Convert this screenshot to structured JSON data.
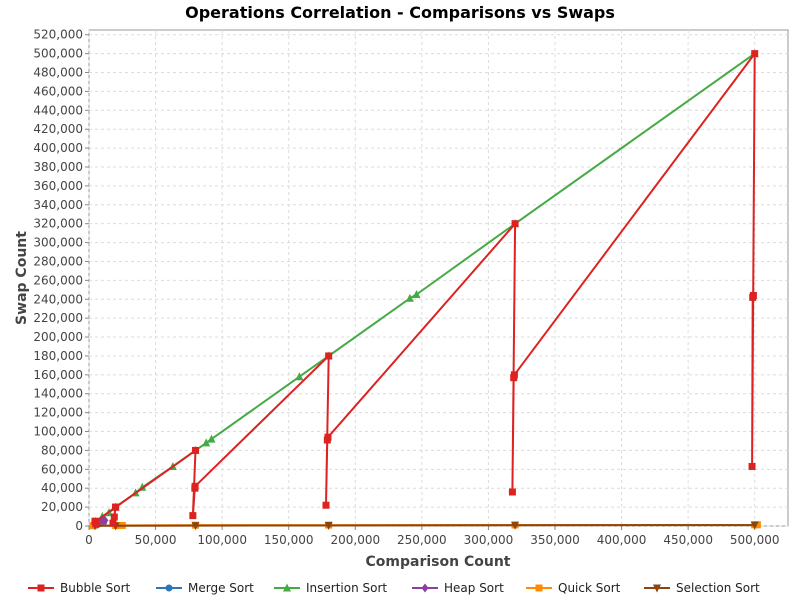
{
  "chart_data": {
    "type": "line",
    "title": "Operations Correlation - Comparisons vs Swaps",
    "xlabel": "Comparison Count",
    "ylabel": "Swap Count",
    "xlim": [
      0,
      525000
    ],
    "ylim": [
      0,
      525000
    ],
    "x_ticks": [
      "0",
      "50,000",
      "100,000",
      "150,000",
      "200,000",
      "250,000",
      "300,000",
      "350,000",
      "400,000",
      "450,000",
      "500,000"
    ],
    "y_ticks": [
      "0",
      "20,000",
      "40,000",
      "60,000",
      "80,000",
      "100,000",
      "120,000",
      "140,000",
      "160,000",
      "180,000",
      "200,000",
      "220,000",
      "240,000",
      "260,000",
      "280,000",
      "300,000",
      "320,000",
      "340,000",
      "360,000",
      "380,000",
      "400,000",
      "420,000",
      "440,000",
      "460,000",
      "480,000",
      "500,000",
      "520,000"
    ],
    "grid": true,
    "legend_position": "bottom",
    "series": [
      {
        "name": "Bubble Sort",
        "color": "#dd2222",
        "marker": "square",
        "points": [
          [
            4500,
            5000
          ],
          [
            5000,
            2500
          ],
          [
            4950,
            4900
          ],
          [
            20000,
            20000
          ],
          [
            19000,
            9500
          ],
          [
            18000,
            3000
          ],
          [
            19950,
            19900
          ],
          [
            80000,
            80000
          ],
          [
            78000,
            11000
          ],
          [
            79500,
            40000
          ],
          [
            79700,
            42000
          ],
          [
            180000,
            180000
          ],
          [
            178000,
            22000
          ],
          [
            179000,
            91000
          ],
          [
            179500,
            94000
          ],
          [
            320000,
            320000
          ],
          [
            318000,
            36000
          ],
          [
            319000,
            157000
          ],
          [
            319500,
            160000
          ],
          [
            500000,
            500000
          ],
          [
            498000,
            63000
          ],
          [
            498500,
            242000
          ],
          [
            499000,
            244000
          ]
        ]
      },
      {
        "name": "Merge Sort",
        "color": "#2e75b6",
        "marker": "circle",
        "points": [
          [
            6000,
            1000
          ],
          [
            8500,
            2500
          ],
          [
            10000,
            3500
          ],
          [
            11000,
            4000
          ]
        ]
      },
      {
        "name": "Insertion Sort",
        "color": "#44aa44",
        "marker": "triangle",
        "points": [
          [
            3000,
            2500
          ],
          [
            5000,
            4900
          ],
          [
            10000,
            10000
          ],
          [
            15000,
            14000
          ],
          [
            20000,
            20000
          ],
          [
            35000,
            35000
          ],
          [
            40000,
            41000
          ],
          [
            63000,
            63000
          ],
          [
            80000,
            80000
          ],
          [
            88000,
            88000
          ],
          [
            92000,
            92000
          ],
          [
            158000,
            158000
          ],
          [
            180000,
            180000
          ],
          [
            241000,
            241000
          ],
          [
            246000,
            245000
          ],
          [
            320000,
            320000
          ],
          [
            500000,
            500000
          ]
        ]
      },
      {
        "name": "Heap Sort",
        "color": "#8b3fa0",
        "marker": "diamond",
        "points": [
          [
            9000,
            4000
          ],
          [
            10000,
            4500
          ],
          [
            11000,
            5000
          ],
          [
            12000,
            6000
          ]
        ]
      },
      {
        "name": "Quick Sort",
        "color": "#ff8c00",
        "marker": "square",
        "points": [
          [
            3000,
            300
          ],
          [
            20000,
            500
          ],
          [
            25000,
            600
          ],
          [
            80000,
            900
          ],
          [
            180000,
            1000
          ],
          [
            320000,
            1100
          ],
          [
            500000,
            1200
          ],
          [
            502000,
            1300
          ]
        ]
      },
      {
        "name": "Selection Sort",
        "color": "#8b4513",
        "marker": "triangle-down",
        "points": [
          [
            4500,
            200
          ],
          [
            20000,
            190
          ],
          [
            80000,
            400
          ],
          [
            180000,
            500
          ],
          [
            320000,
            800
          ],
          [
            500000,
            1000
          ]
        ]
      }
    ]
  }
}
